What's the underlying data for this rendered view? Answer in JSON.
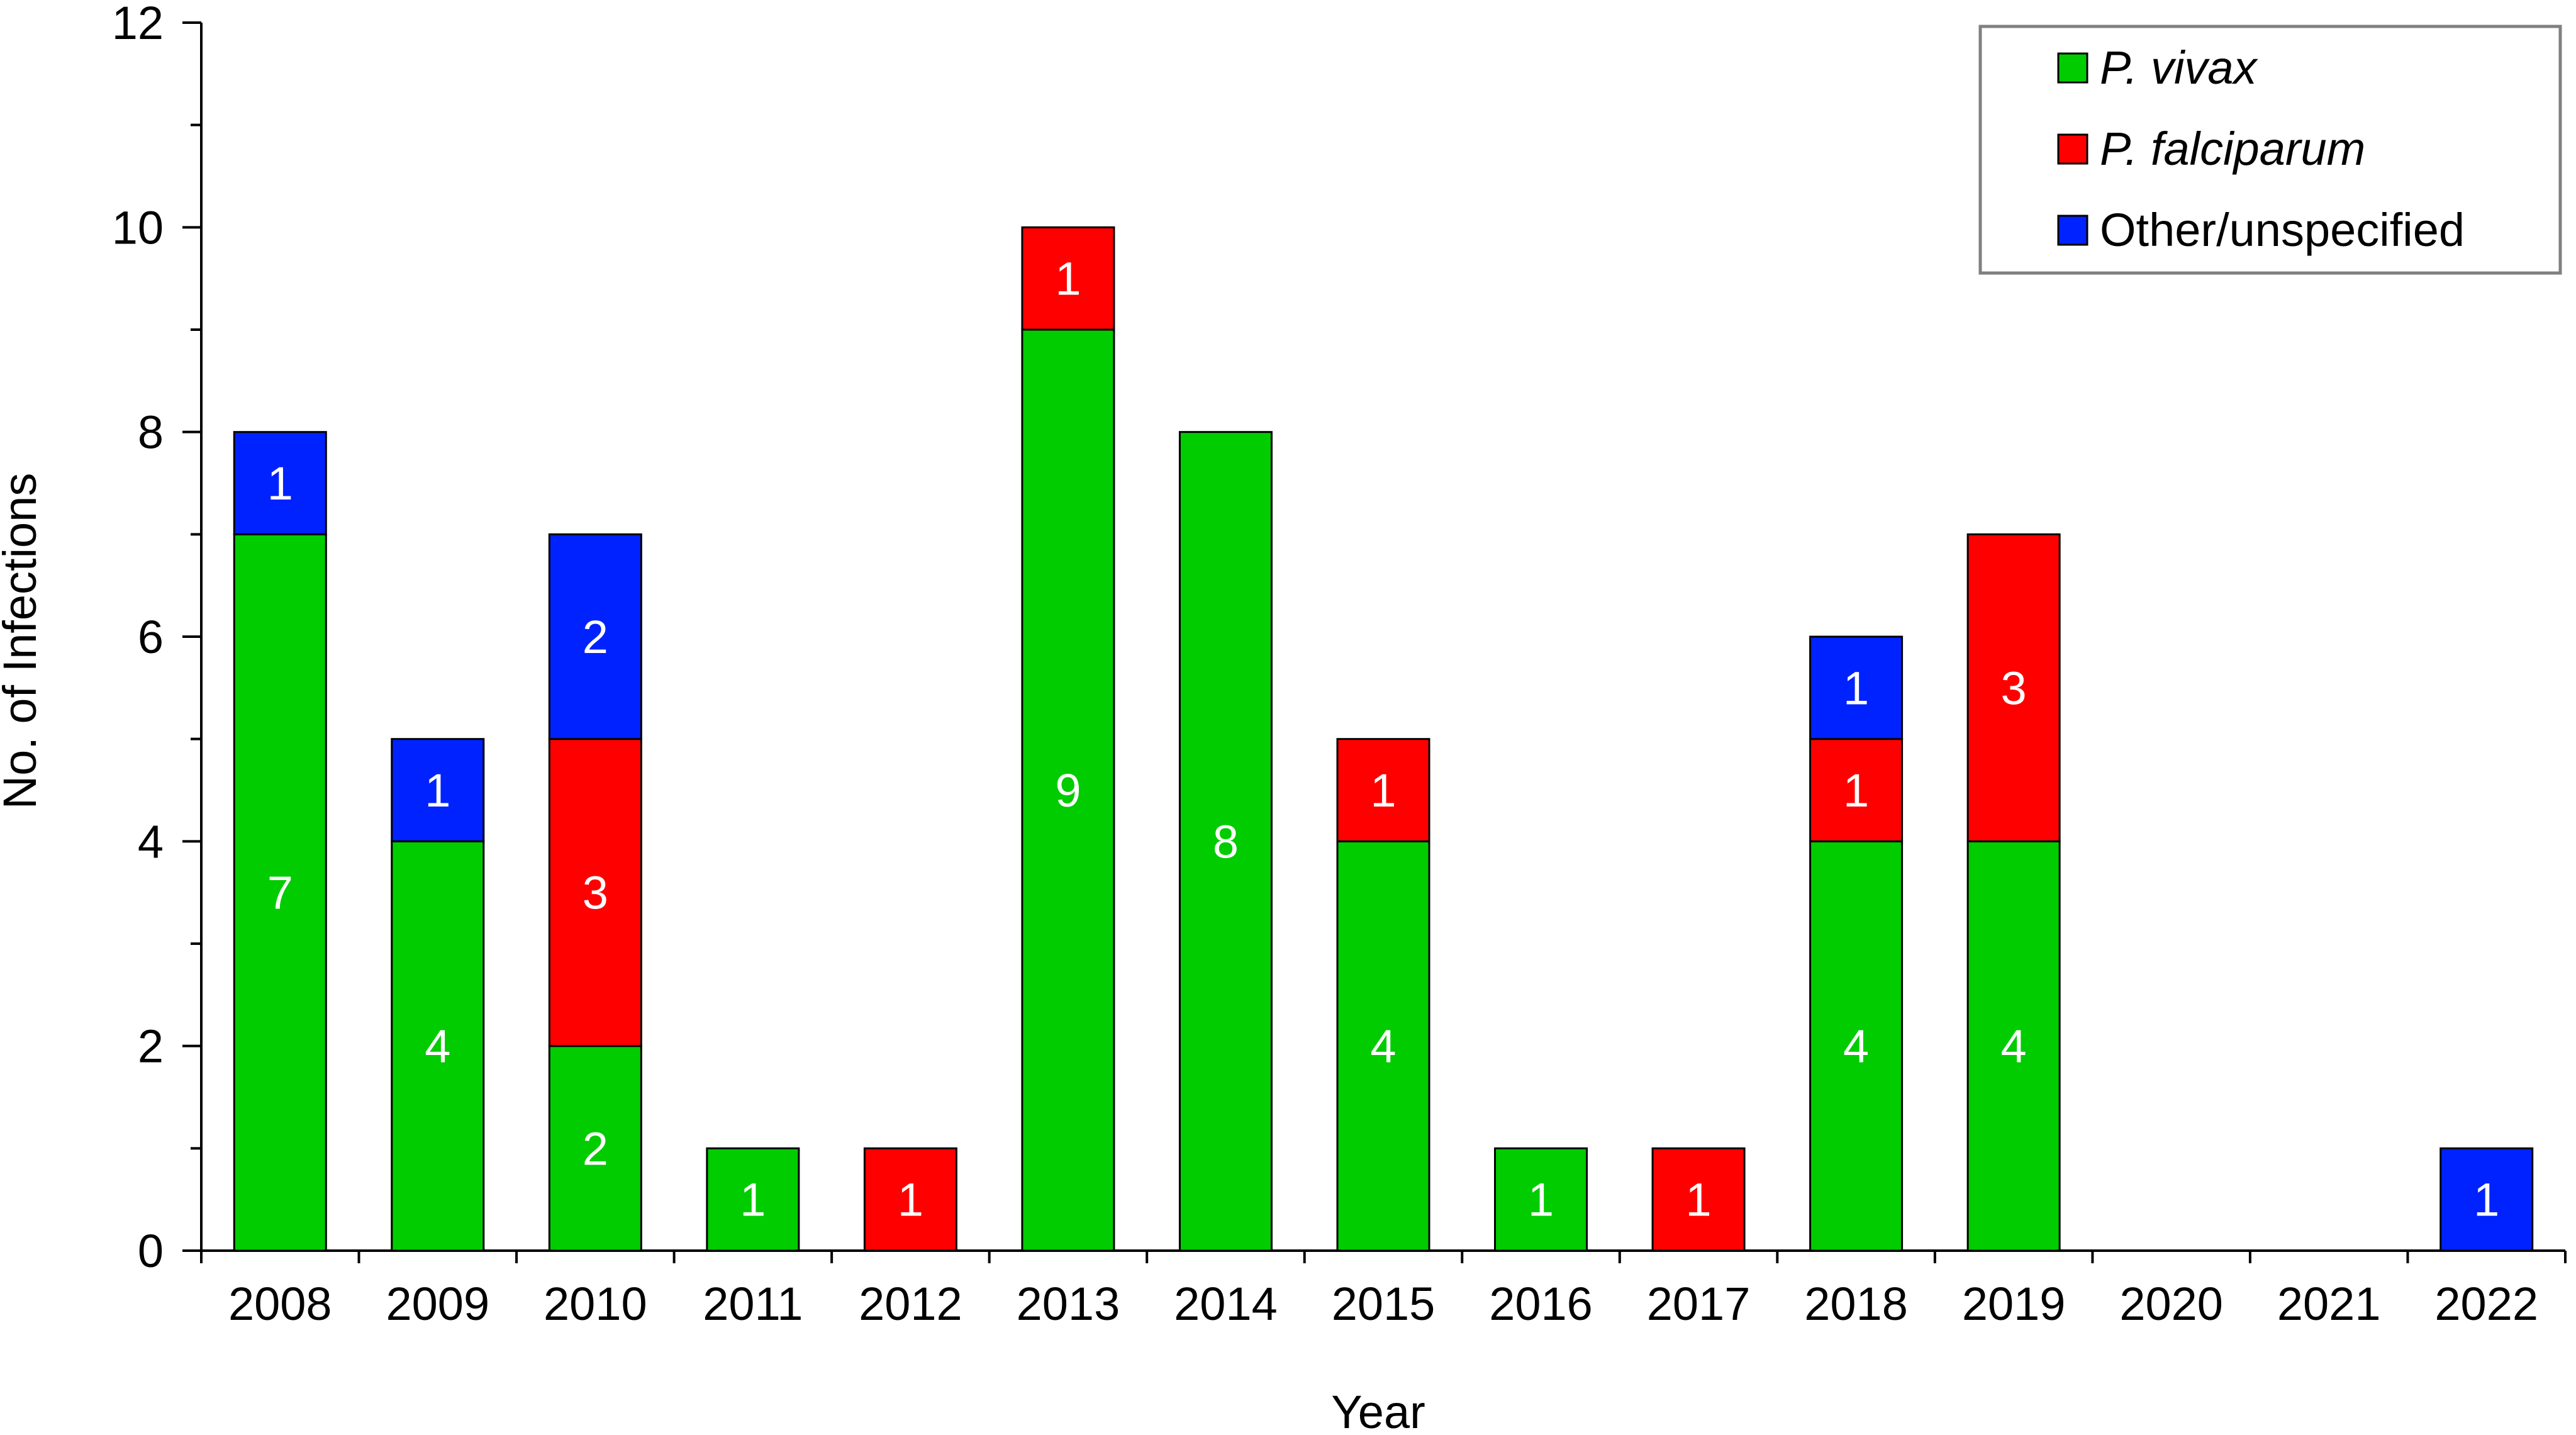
{
  "chart_data": {
    "type": "bar",
    "stacked": true,
    "categories": [
      "2008",
      "2009",
      "2010",
      "2011",
      "2012",
      "2013",
      "2014",
      "2015",
      "2016",
      "2017",
      "2018",
      "2019",
      "2020",
      "2021",
      "2022"
    ],
    "series": [
      {
        "name": "P. vivax",
        "color": "#00cc00",
        "values": [
          7,
          4,
          2,
          1,
          0,
          9,
          8,
          4,
          1,
          0,
          4,
          4,
          0,
          0,
          0
        ]
      },
      {
        "name": "P. falciparum",
        "color": "#ff0000",
        "values": [
          0,
          0,
          3,
          0,
          1,
          1,
          0,
          1,
          0,
          1,
          1,
          3,
          0,
          0,
          0
        ]
      },
      {
        "name": "Other/unspecified",
        "color": "#0022ff",
        "values": [
          1,
          1,
          2,
          0,
          0,
          0,
          0,
          0,
          0,
          0,
          1,
          0,
          0,
          0,
          1
        ]
      }
    ],
    "xlabel": "Year",
    "ylabel": "No. of Infections",
    "ylim": [
      0,
      12
    ],
    "yticks": [
      "0",
      "2",
      "4",
      "6",
      "8",
      "10",
      "12"
    ],
    "legend_placement": "top-right",
    "grid": false
  }
}
